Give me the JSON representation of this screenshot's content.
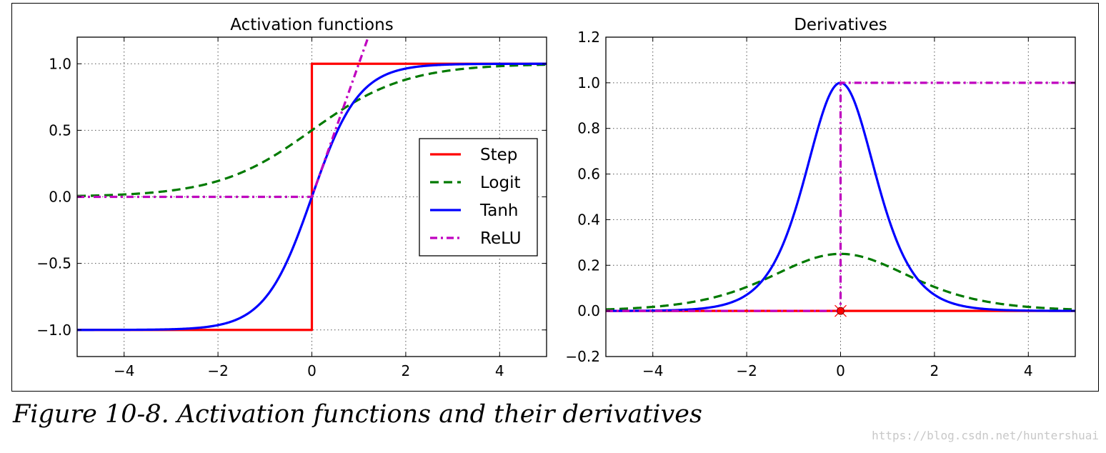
{
  "figure": {
    "caption": "Figure 10-8. Activation functions and their derivatives",
    "watermark": "https://blog.csdn.net/huntershuai"
  },
  "colors": {
    "step": "#ff0000",
    "logit": "#007a00",
    "tanh": "#0000ff",
    "relu": "#bf00bf",
    "grid": "#555555"
  },
  "chart_data": [
    {
      "type": "line",
      "title": "Activation functions",
      "xlabel": "",
      "ylabel": "",
      "xlim": [
        -5,
        5
      ],
      "ylim": [
        -1.2,
        1.2
      ],
      "xticks": [
        -4,
        -2,
        0,
        2,
        4
      ],
      "xtick_labels": [
        "−4",
        "−2",
        "0",
        "2",
        "4"
      ],
      "yticks": [
        -1.0,
        -0.5,
        0.0,
        0.5,
        1.0
      ],
      "ytick_labels": [
        "−1.0",
        "−0.5",
        "0.0",
        "0.5",
        "1.0"
      ],
      "grid": true,
      "legend_position": "center-right",
      "series": [
        {
          "name": "Step",
          "function": "step",
          "style": "solid",
          "color": "#ff0000",
          "points": [
            [
              -5,
              -1
            ],
            [
              0,
              -1
            ],
            [
              0,
              1
            ],
            [
              5,
              1
            ]
          ]
        },
        {
          "name": "Logit",
          "function": "logit",
          "style": "dashed",
          "color": "#007a00",
          "points": [
            [
              -5,
              0.007
            ],
            [
              -4,
              0.018
            ],
            [
              -3,
              0.047
            ],
            [
              -2,
              0.119
            ],
            [
              -1,
              0.269
            ],
            [
              0,
              0.5
            ],
            [
              1,
              0.731
            ],
            [
              2,
              0.881
            ],
            [
              3,
              0.953
            ],
            [
              4,
              0.982
            ],
            [
              5,
              0.993
            ]
          ]
        },
        {
          "name": "Tanh",
          "function": "tanh",
          "style": "solid",
          "color": "#0000ff",
          "points": [
            [
              -5,
              -1.0
            ],
            [
              -3,
              -0.995
            ],
            [
              -2,
              -0.964
            ],
            [
              -1,
              -0.762
            ],
            [
              0,
              0
            ],
            [
              1,
              0.762
            ],
            [
              2,
              0.964
            ],
            [
              3,
              0.995
            ],
            [
              5,
              1.0
            ]
          ]
        },
        {
          "name": "ReLU",
          "function": "relu",
          "style": "dashdot",
          "color": "#bf00bf",
          "points": [
            [
              -5,
              0
            ],
            [
              0,
              0
            ],
            [
              1.2,
              1.2
            ]
          ]
        }
      ],
      "legend": [
        "Step",
        "Logit",
        "Tanh",
        "ReLU"
      ]
    },
    {
      "type": "line",
      "title": "Derivatives",
      "xlabel": "",
      "ylabel": "",
      "xlim": [
        -5,
        5
      ],
      "ylim": [
        -0.2,
        1.2
      ],
      "xticks": [
        -4,
        -2,
        0,
        2,
        4
      ],
      "xtick_labels": [
        "−4",
        "−2",
        "0",
        "2",
        "4"
      ],
      "yticks": [
        -0.2,
        0.0,
        0.2,
        0.4,
        0.6,
        0.8,
        1.0,
        1.2
      ],
      "ytick_labels": [
        "−0.2",
        "0.0",
        "0.2",
        "0.4",
        "0.6",
        "0.8",
        "1.0",
        "1.2"
      ],
      "grid": true,
      "series": [
        {
          "name": "Step",
          "function": "step_deriv",
          "style": "solid",
          "color": "#ff0000",
          "points": [
            [
              -5,
              0
            ],
            [
              5,
              0
            ]
          ],
          "marker_at": [
            0,
            0
          ]
        },
        {
          "name": "Logit",
          "function": "logit_deriv",
          "style": "dashed",
          "color": "#007a00",
          "points": [
            [
              -5,
              0.0066
            ],
            [
              -4,
              0.0177
            ],
            [
              -3,
              0.0452
            ],
            [
              -2,
              0.105
            ],
            [
              -1,
              0.197
            ],
            [
              0,
              0.25
            ],
            [
              1,
              0.197
            ],
            [
              2,
              0.105
            ],
            [
              3,
              0.0452
            ],
            [
              4,
              0.0177
            ],
            [
              5,
              0.0066
            ]
          ]
        },
        {
          "name": "Tanh",
          "function": "tanh_deriv",
          "style": "solid",
          "color": "#0000ff",
          "points": [
            [
              -5,
              0.0002
            ],
            [
              -3,
              0.0099
            ],
            [
              -2,
              0.0707
            ],
            [
              -1,
              0.42
            ],
            [
              0,
              1.0
            ],
            [
              1,
              0.42
            ],
            [
              2,
              0.0707
            ],
            [
              3,
              0.0099
            ],
            [
              5,
              0.0002
            ]
          ]
        },
        {
          "name": "ReLU",
          "function": "relu_deriv",
          "style": "dashdot",
          "color": "#bf00bf",
          "points": [
            [
              -5,
              0
            ],
            [
              0,
              0
            ],
            [
              0,
              1
            ],
            [
              5,
              1
            ]
          ]
        }
      ]
    }
  ]
}
